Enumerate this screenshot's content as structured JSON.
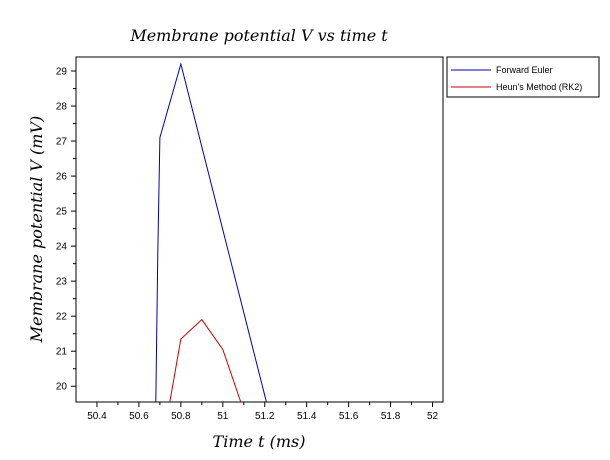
{
  "chart_data": {
    "type": "line",
    "title": "Membrane potential V vs time t",
    "xlabel": "Time t (ms)",
    "ylabel": "Membrane potential V (mV)",
    "xlim": [
      50.3,
      52.05
    ],
    "ylim": [
      19.55,
      29.4
    ],
    "xticks": [
      50.4,
      50.6,
      50.8,
      51,
      51.2,
      51.4,
      51.6,
      51.8,
      52
    ],
    "xtick_labels": [
      "50.4",
      "50.6",
      "50.8",
      "51",
      "51.2",
      "51.4",
      "51.6",
      "51.8",
      "52"
    ],
    "yticks": [
      20,
      21,
      22,
      23,
      24,
      25,
      26,
      27,
      28,
      29
    ],
    "ytick_labels": [
      "20",
      "21",
      "22",
      "23",
      "24",
      "25",
      "26",
      "27",
      "28",
      "29"
    ],
    "grid": false,
    "legend": "outside-top-right",
    "series": [
      {
        "name": "Forward Euler",
        "color": "#0000b4",
        "x": [
          50.68,
          50.69,
          50.7,
          50.8,
          51.21
        ],
        "y": [
          19.3,
          23.8,
          27.1,
          29.2,
          19.5
        ]
      },
      {
        "name": "Heun's Method (RK2)",
        "color": "#cc0000",
        "x": [
          50.74,
          50.8,
          50.9,
          51.0,
          51.1
        ],
        "y": [
          19.3,
          21.35,
          21.9,
          21.05,
          19.3
        ]
      }
    ]
  }
}
